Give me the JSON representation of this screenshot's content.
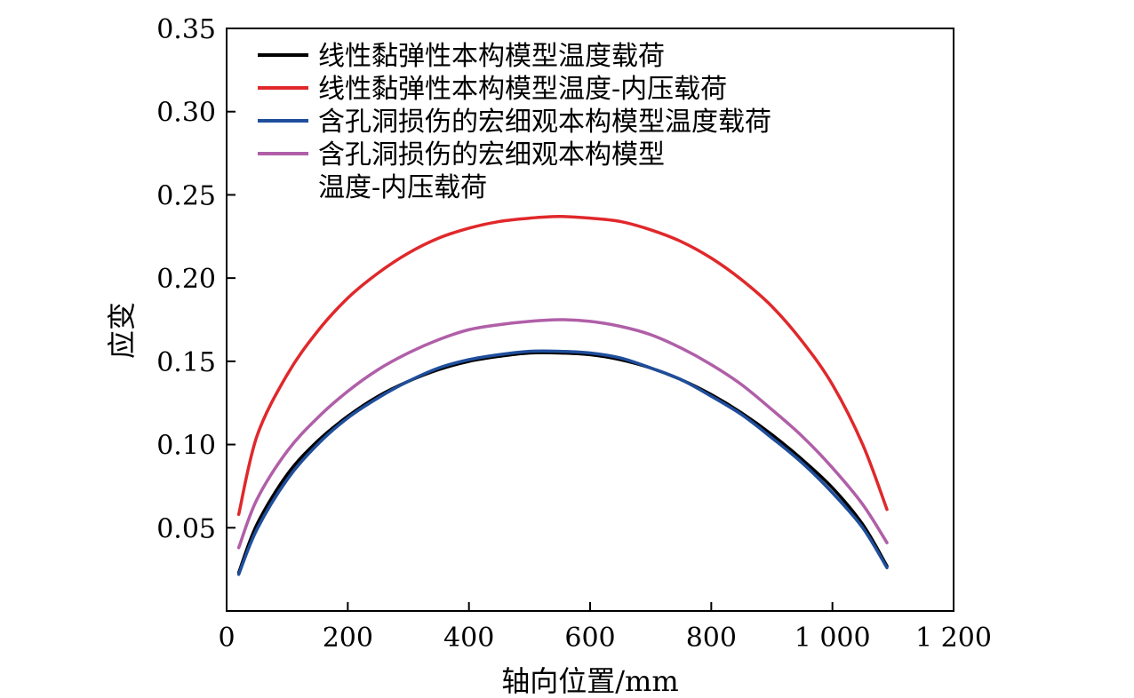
{
  "chart_data": {
    "type": "line",
    "title": "",
    "xlabel": "轴向位置/mm",
    "ylabel": "应变",
    "xlim": [
      0,
      1200
    ],
    "ylim": [
      0,
      0.35
    ],
    "xticks": [
      0,
      200,
      400,
      600,
      800,
      1000,
      1200
    ],
    "xtick_labels": [
      "0",
      "200",
      "400",
      "600",
      "800",
      "1 000",
      "1 200"
    ],
    "yticks": [
      0.05,
      0.1,
      0.15,
      0.2,
      0.25,
      0.3,
      0.35
    ],
    "ytick_labels": [
      "0.05",
      "0.10",
      "0.15",
      "0.20",
      "0.25",
      "0.30",
      "0.35"
    ],
    "grid": false,
    "legend_position": "top-left",
    "x": [
      20,
      50,
      100,
      150,
      200,
      250,
      300,
      350,
      400,
      450,
      500,
      550,
      600,
      650,
      700,
      750,
      800,
      850,
      900,
      950,
      1000,
      1050,
      1090
    ],
    "series": [
      {
        "name": "线性黏弹性本构模型温度载荷",
        "color": "#000000",
        "values": [
          0.023,
          0.052,
          0.082,
          0.102,
          0.117,
          0.129,
          0.138,
          0.145,
          0.15,
          0.153,
          0.155,
          0.155,
          0.154,
          0.151,
          0.146,
          0.139,
          0.13,
          0.119,
          0.106,
          0.091,
          0.074,
          0.052,
          0.027
        ]
      },
      {
        "name": "线性黏弹性本构模型温度-内压载荷",
        "color": "#e0282b",
        "values": [
          0.058,
          0.105,
          0.142,
          0.168,
          0.188,
          0.203,
          0.215,
          0.224,
          0.23,
          0.234,
          0.236,
          0.237,
          0.236,
          0.234,
          0.229,
          0.222,
          0.212,
          0.199,
          0.183,
          0.162,
          0.136,
          0.1,
          0.061
        ]
      },
      {
        "name": "含孔洞损伤的宏细观本构模型温度载荷",
        "color": "#1f4e9c",
        "values": [
          0.022,
          0.049,
          0.079,
          0.1,
          0.116,
          0.128,
          0.138,
          0.146,
          0.151,
          0.154,
          0.156,
          0.156,
          0.155,
          0.152,
          0.146,
          0.139,
          0.129,
          0.118,
          0.104,
          0.089,
          0.071,
          0.05,
          0.026
        ]
      },
      {
        "name": "含孔洞损伤的宏细观本构模型温度-内压载荷",
        "color": "#b05fa8",
        "values": [
          0.038,
          0.067,
          0.096,
          0.116,
          0.132,
          0.145,
          0.155,
          0.163,
          0.169,
          0.172,
          0.174,
          0.175,
          0.174,
          0.171,
          0.166,
          0.158,
          0.148,
          0.136,
          0.121,
          0.105,
          0.086,
          0.064,
          0.041
        ]
      }
    ],
    "legend_lines": [
      [
        "线性黏弹性本构模型温度载荷"
      ],
      [
        "线性黏弹性本构模型温度-内压载荷"
      ],
      [
        "含孔洞损伤的宏细观本构模型温度载荷"
      ],
      [
        "含孔洞损伤的宏细观本构模型",
        "温度-内压载荷"
      ]
    ]
  }
}
